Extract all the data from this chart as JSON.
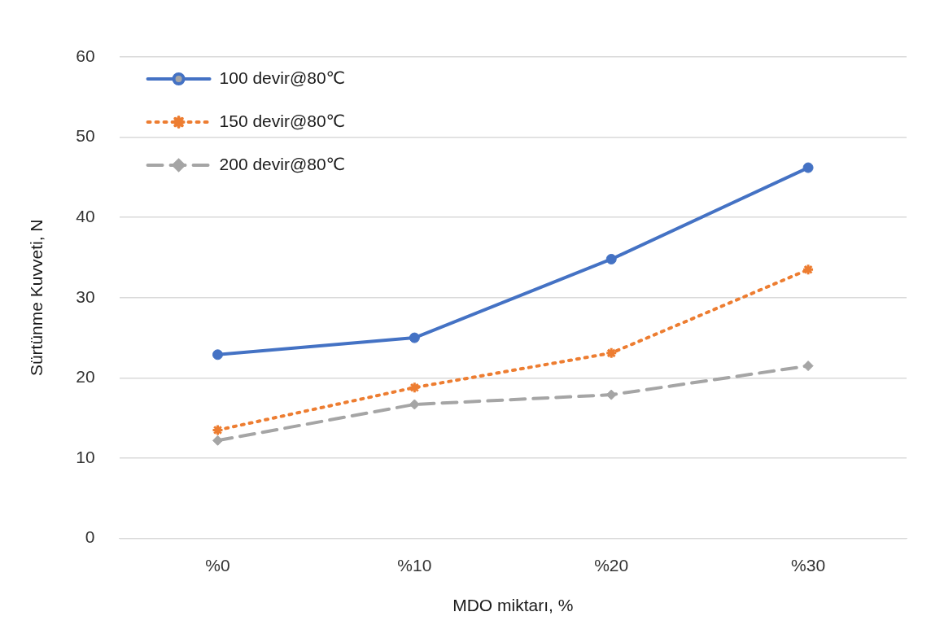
{
  "chart_data": {
    "type": "line",
    "xlabel": "MDO miktarı, %",
    "ylabel": "Sürtünme Kuvveti, N",
    "categories": [
      "%0",
      "%10",
      "%20",
      "%30"
    ],
    "series": [
      {
        "name": "100 devir@80℃",
        "color": "#4472c4",
        "values": [
          22.9,
          25.0,
          34.8,
          46.2
        ],
        "marker": "circle",
        "line_style": "solid"
      },
      {
        "name": "150 devir@80℃",
        "color": "#ed7d31",
        "values": [
          13.5,
          18.8,
          23.1,
          33.5
        ],
        "marker": "cross",
        "line_style": "dotted"
      },
      {
        "name": "200 devir@80℃",
        "color": "#a5a5a5",
        "values": [
          12.2,
          16.7,
          17.9,
          21.5
        ],
        "marker": "diamond",
        "line_style": "dashed"
      }
    ],
    "ylim": [
      0,
      60
    ],
    "yticks": [
      0,
      10,
      20,
      30,
      40,
      50,
      60
    ],
    "grid": "y",
    "legend": "top left"
  }
}
